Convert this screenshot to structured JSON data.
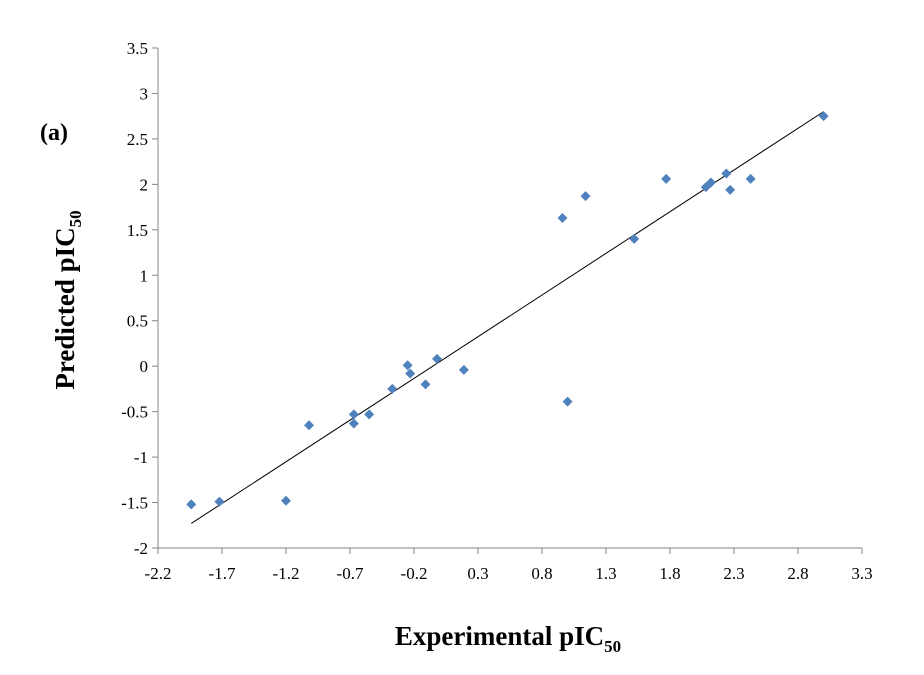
{
  "chart_data": {
    "type": "scatter",
    "panel_label": "(a)",
    "xlabel_main": "Experimental pIC",
    "xlabel_sub": "50",
    "ylabel_main": "Predicted pIC",
    "ylabel_sub": "50",
    "xlim": [
      -2.2,
      3.3
    ],
    "ylim": [
      -2,
      3.5
    ],
    "x_ticks": [
      "-2.2",
      "-1.7",
      "-1.2",
      "-0.7",
      "-0.2",
      "0.3",
      "0.8",
      "1.3",
      "1.8",
      "2.3",
      "2.8",
      "3.3"
    ],
    "y_ticks": [
      "-2",
      "-1.5",
      "-1",
      "-0.5",
      "0",
      "0.5",
      "1",
      "1.5",
      "2",
      "2.5",
      "3",
      "3.5"
    ],
    "grid": false,
    "marker_color": "#4f81bd",
    "line_color": "#000000",
    "points": [
      {
        "x": -1.94,
        "y": -1.52
      },
      {
        "x": -1.72,
        "y": -1.49
      },
      {
        "x": -1.2,
        "y": -1.48
      },
      {
        "x": -1.02,
        "y": -0.65
      },
      {
        "x": -0.67,
        "y": -0.53
      },
      {
        "x": -0.67,
        "y": -0.63
      },
      {
        "x": -0.55,
        "y": -0.53
      },
      {
        "x": -0.37,
        "y": -0.25
      },
      {
        "x": -0.25,
        "y": 0.01
      },
      {
        "x": -0.23,
        "y": -0.08
      },
      {
        "x": -0.11,
        "y": -0.2
      },
      {
        "x": -0.02,
        "y": 0.08
      },
      {
        "x": 0.19,
        "y": -0.04
      },
      {
        "x": 0.96,
        "y": 1.63
      },
      {
        "x": 1.0,
        "y": -0.39
      },
      {
        "x": 1.14,
        "y": 1.87
      },
      {
        "x": 1.52,
        "y": 1.4
      },
      {
        "x": 1.77,
        "y": 2.06
      },
      {
        "x": 2.08,
        "y": 1.97
      },
      {
        "x": 2.12,
        "y": 2.02
      },
      {
        "x": 2.24,
        "y": 2.12
      },
      {
        "x": 2.27,
        "y": 1.94
      },
      {
        "x": 2.43,
        "y": 2.06
      },
      {
        "x": 3.0,
        "y": 2.75
      }
    ],
    "trendline": {
      "x1": -1.94,
      "y1": -1.73,
      "x2": 3.0,
      "y2": 2.8
    }
  }
}
